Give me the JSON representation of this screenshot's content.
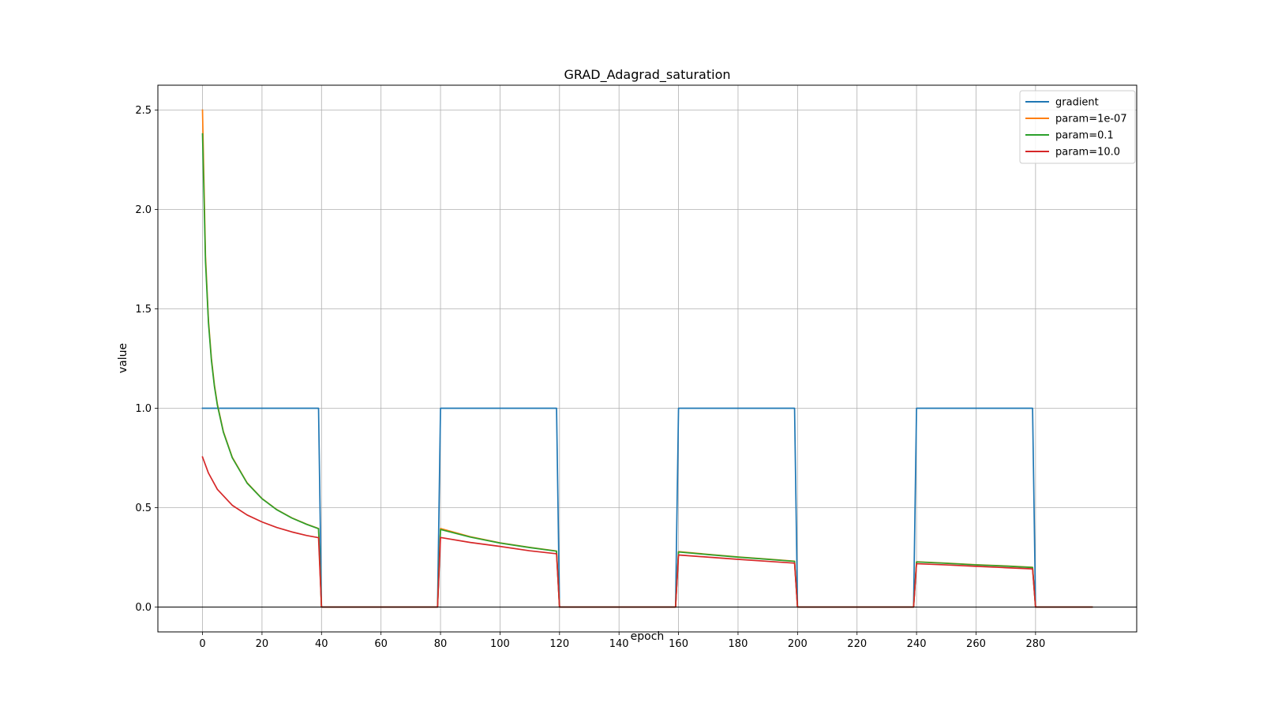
{
  "chart_data": {
    "type": "line",
    "title": "GRAD_Adagrad_saturation",
    "xlabel": "epoch",
    "ylabel": "value",
    "xlim": [
      -15,
      314
    ],
    "ylim": [
      -0.125,
      2.625
    ],
    "xticks": [
      0,
      20,
      40,
      60,
      80,
      100,
      120,
      140,
      160,
      180,
      200,
      220,
      240,
      260,
      280
    ],
    "xtick_labels": [
      "0",
      "20",
      "40",
      "60",
      "80",
      "100",
      "120",
      "140",
      "160",
      "180",
      "200",
      "220",
      "240",
      "260",
      "280"
    ],
    "yticks": [
      0.0,
      0.5,
      1.0,
      1.5,
      2.0,
      2.5
    ],
    "ytick_labels": [
      "0.0",
      "0.5",
      "1.0",
      "1.5",
      "2.0",
      "2.5"
    ],
    "grid": true,
    "legend_position": "top-right",
    "series": [
      {
        "name": "gradient",
        "color": "#1f77b4",
        "x": [
          0,
          39,
          40,
          79,
          80,
          119,
          120,
          159,
          160,
          199,
          200,
          239,
          240,
          279,
          280,
          299
        ],
        "y": [
          1,
          1,
          0,
          0,
          1,
          1,
          0,
          0,
          1,
          1,
          0,
          0,
          1,
          1,
          0,
          0
        ]
      },
      {
        "name": "param=1e-07",
        "color": "#ff7f0e",
        "x": [
          0,
          1,
          2,
          3,
          4,
          5,
          7,
          10,
          15,
          20,
          25,
          30,
          35,
          39,
          40,
          79,
          80,
          90,
          100,
          110,
          119,
          120,
          159,
          160,
          170,
          180,
          190,
          199,
          200,
          239,
          240,
          250,
          260,
          270,
          279,
          280,
          299
        ],
        "y": [
          2.5,
          1.768,
          1.443,
          1.25,
          1.118,
          1.021,
          0.884,
          0.754,
          0.625,
          0.546,
          0.49,
          0.449,
          0.417,
          0.395,
          0.0,
          0.0,
          0.395,
          0.354,
          0.323,
          0.3,
          0.282,
          0.0,
          0.0,
          0.279,
          0.265,
          0.252,
          0.241,
          0.231,
          0.0,
          0.0,
          0.228,
          0.221,
          0.213,
          0.207,
          0.2,
          0.0,
          0.0
        ]
      },
      {
        "name": "param=0.1",
        "color": "#2ca02c",
        "x": [
          0,
          1,
          2,
          3,
          4,
          5,
          7,
          10,
          15,
          20,
          25,
          30,
          35,
          39,
          40,
          79,
          80,
          90,
          100,
          110,
          119,
          120,
          159,
          160,
          170,
          180,
          190,
          199,
          200,
          239,
          240,
          250,
          260,
          270,
          279,
          280,
          299
        ],
        "y": [
          2.38,
          1.74,
          1.43,
          1.24,
          1.11,
          1.015,
          0.88,
          0.751,
          0.623,
          0.545,
          0.489,
          0.448,
          0.416,
          0.394,
          0.0,
          0.0,
          0.39,
          0.352,
          0.322,
          0.299,
          0.281,
          0.0,
          0.0,
          0.277,
          0.264,
          0.251,
          0.24,
          0.23,
          0.0,
          0.0,
          0.227,
          0.22,
          0.212,
          0.206,
          0.199,
          0.0,
          0.0
        ]
      },
      {
        "name": "param=10.0",
        "color": "#d62728",
        "x": [
          0,
          2,
          5,
          10,
          15,
          20,
          25,
          30,
          35,
          39,
          40,
          79,
          80,
          90,
          100,
          110,
          119,
          120,
          159,
          160,
          170,
          180,
          190,
          199,
          200,
          239,
          240,
          250,
          260,
          270,
          279,
          280,
          299
        ],
        "y": [
          0.755,
          0.674,
          0.592,
          0.512,
          0.463,
          0.428,
          0.4,
          0.378,
          0.36,
          0.349,
          0.0,
          0.0,
          0.35,
          0.325,
          0.305,
          0.283,
          0.268,
          0.0,
          0.0,
          0.262,
          0.251,
          0.24,
          0.23,
          0.221,
          0.0,
          0.0,
          0.218,
          0.212,
          0.205,
          0.198,
          0.192,
          0.0,
          0.0
        ]
      }
    ]
  }
}
